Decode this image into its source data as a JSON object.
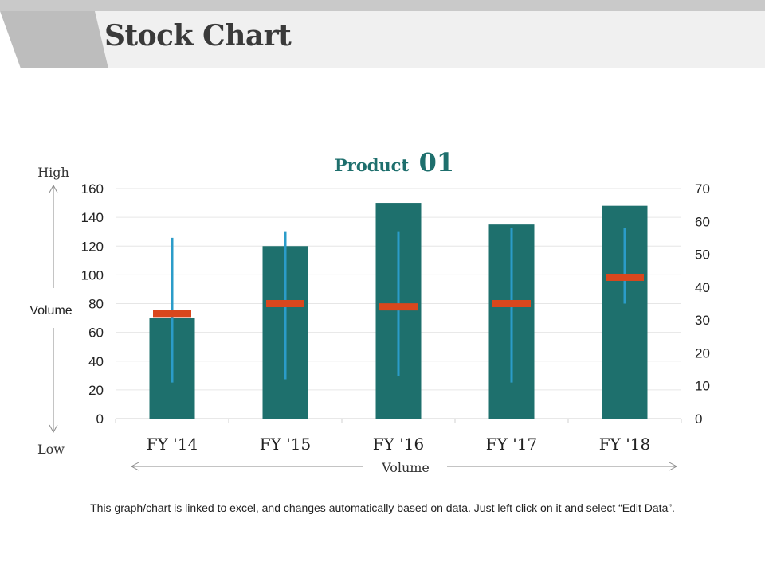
{
  "slide": {
    "title": "Stock Chart",
    "footer_note": "This graph/chart is linked to excel, and changes automatically based on data. Just left click on it and select “Edit Data”."
  },
  "chart_data": {
    "type": "bar",
    "title_word": "Product",
    "title_number": "01",
    "categories": [
      "FY '14",
      "FY '15",
      "FY '16",
      "FY '17",
      "FY '18"
    ],
    "volume": [
      70,
      120,
      150,
      135,
      148
    ],
    "high": [
      55,
      57,
      57,
      58,
      58
    ],
    "low": [
      11,
      12,
      13,
      11,
      35
    ],
    "close": [
      32,
      35,
      34,
      35,
      43
    ],
    "y_left": {
      "min": 0,
      "max": 160,
      "ticks": [
        0,
        20,
        40,
        60,
        80,
        100,
        120,
        140,
        160
      ]
    },
    "y_right": {
      "min": 0,
      "max": 70,
      "ticks": [
        0,
        10,
        20,
        30,
        40,
        50,
        60,
        70
      ]
    },
    "left_axis": {
      "top_label": "High",
      "middle_label": "Volume",
      "bottom_label": "Low"
    },
    "xlabel": "Volume",
    "grid": true,
    "colors": {
      "bar": "#1e706d",
      "range": "#2b9cc9",
      "close": "#d9471d",
      "title": "#1e6f6d",
      "grid": "#e6e6e6"
    }
  }
}
